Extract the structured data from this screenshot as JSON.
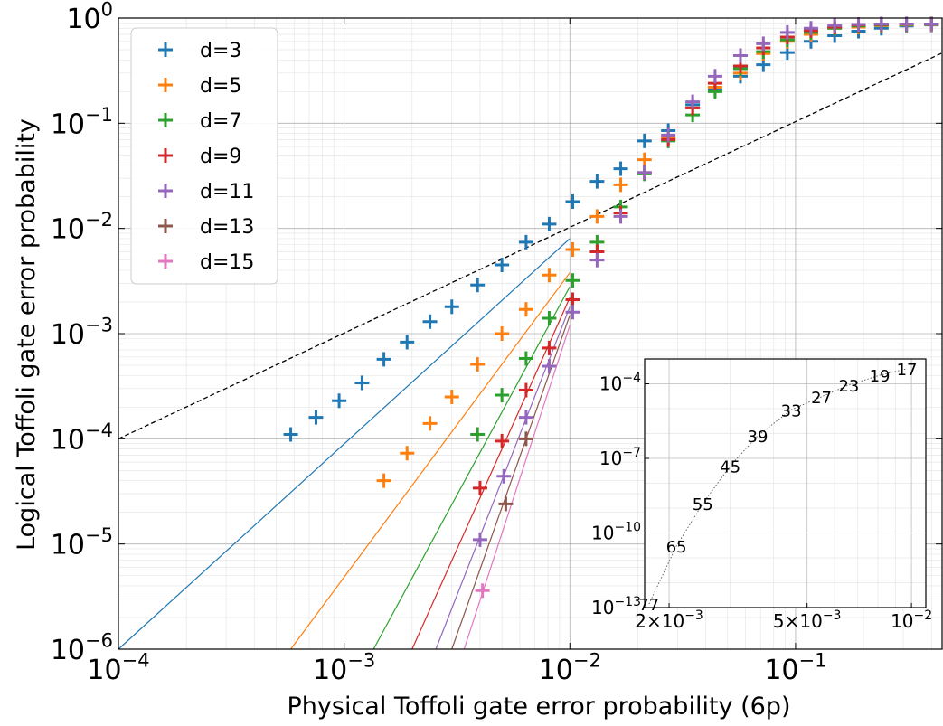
{
  "chart_data": [
    {
      "type": "scatter",
      "title": "",
      "xlabel": "Physical Toffoli gate error probability (6p)",
      "ylabel": "Logical Toffoli gate error probability",
      "xscale": "log",
      "yscale": "log",
      "xlim": [
        0.0001,
        0.45
      ],
      "ylim": [
        1e-06,
        1
      ],
      "x_ticks": [
        {
          "value": 0.0001,
          "base": "10",
          "exp": "−4"
        },
        {
          "value": 0.001,
          "base": "10",
          "exp": "−3"
        },
        {
          "value": 0.01,
          "base": "10",
          "exp": "−2"
        },
        {
          "value": 0.1,
          "base": "10",
          "exp": "−1"
        }
      ],
      "y_ticks": [
        {
          "value": 1e-06,
          "base": "10",
          "exp": "−6"
        },
        {
          "value": 1e-05,
          "base": "10",
          "exp": "−5"
        },
        {
          "value": 0.0001,
          "base": "10",
          "exp": "−4"
        },
        {
          "value": 0.001,
          "base": "10",
          "exp": "−3"
        },
        {
          "value": 0.01,
          "base": "10",
          "exp": "−2"
        },
        {
          "value": 0.1,
          "base": "10",
          "exp": "−1"
        },
        {
          "value": 1,
          "base": "10",
          "exp": "0"
        }
      ],
      "grid": true,
      "legend_position": "top-left",
      "marker": "plus",
      "series": [
        {
          "name": "d=3",
          "color": "#1f77b4",
          "points": [
            [
              0.00058,
              0.00011
            ],
            [
              0.00075,
              0.00016
            ],
            [
              0.00095,
              0.00023
            ],
            [
              0.0012,
              0.00034
            ],
            [
              0.0015,
              0.00057
            ],
            [
              0.0019,
              0.00083
            ],
            [
              0.0024,
              0.0013
            ],
            [
              0.003,
              0.0018
            ],
            [
              0.0039,
              0.0029
            ],
            [
              0.005,
              0.0045
            ],
            [
              0.0064,
              0.0074
            ],
            [
              0.0081,
              0.011
            ],
            [
              0.0103,
              0.018
            ],
            [
              0.0132,
              0.028
            ],
            [
              0.0168,
              0.037
            ],
            [
              0.0214,
              0.068
            ],
            [
              0.0273,
              0.085
            ],
            [
              0.035,
              0.15
            ],
            [
              0.044,
              0.21
            ],
            [
              0.057,
              0.28
            ],
            [
              0.072,
              0.36
            ],
            [
              0.092,
              0.47
            ],
            [
              0.117,
              0.6
            ],
            [
              0.149,
              0.68
            ],
            [
              0.19,
              0.75
            ],
            [
              0.24,
              0.8
            ],
            [
              0.31,
              0.84
            ],
            [
              0.4,
              0.86
            ]
          ]
        },
        {
          "name": "d=5",
          "color": "#ff7f0e",
          "points": [
            [
              0.0015,
              4e-05
            ],
            [
              0.0019,
              7.3e-05
            ],
            [
              0.0024,
              0.00014
            ],
            [
              0.003,
              0.00025
            ],
            [
              0.0039,
              0.00051
            ],
            [
              0.005,
              0.001
            ],
            [
              0.0064,
              0.0017
            ],
            [
              0.0081,
              0.0036
            ],
            [
              0.0103,
              0.0063
            ],
            [
              0.0132,
              0.013
            ],
            [
              0.0168,
              0.026
            ],
            [
              0.0214,
              0.045
            ],
            [
              0.0273,
              0.073
            ],
            [
              0.035,
              0.14
            ],
            [
              0.044,
              0.22
            ],
            [
              0.057,
              0.3
            ],
            [
              0.072,
              0.46
            ],
            [
              0.092,
              0.6
            ],
            [
              0.117,
              0.7
            ],
            [
              0.149,
              0.8
            ],
            [
              0.19,
              0.82
            ],
            [
              0.24,
              0.85
            ],
            [
              0.31,
              0.86
            ],
            [
              0.4,
              0.87
            ]
          ]
        },
        {
          "name": "d=7",
          "color": "#2ca02c",
          "points": [
            [
              0.0039,
              0.00011
            ],
            [
              0.005,
              0.00026
            ],
            [
              0.0064,
              0.00058
            ],
            [
              0.0081,
              0.0014
            ],
            [
              0.0103,
              0.0032
            ],
            [
              0.0132,
              0.0074
            ],
            [
              0.0168,
              0.016
            ],
            [
              0.0214,
              0.033
            ],
            [
              0.0273,
              0.068
            ],
            [
              0.035,
              0.12
            ],
            [
              0.044,
              0.2
            ],
            [
              0.057,
              0.33
            ],
            [
              0.072,
              0.48
            ],
            [
              0.092,
              0.62
            ],
            [
              0.117,
              0.73
            ],
            [
              0.149,
              0.8
            ],
            [
              0.19,
              0.84
            ],
            [
              0.24,
              0.86
            ],
            [
              0.31,
              0.87
            ],
            [
              0.4,
              0.88
            ]
          ]
        },
        {
          "name": "d=9",
          "color": "#d62728",
          "points": [
            [
              0.004,
              3.4e-05
            ],
            [
              0.005,
              9.5e-05
            ],
            [
              0.0064,
              0.00029
            ],
            [
              0.0081,
              0.00073
            ],
            [
              0.0103,
              0.0021
            ],
            [
              0.0132,
              0.006
            ],
            [
              0.0168,
              0.014
            ],
            [
              0.0214,
              0.034
            ],
            [
              0.0273,
              0.07
            ],
            [
              0.035,
              0.14
            ],
            [
              0.044,
              0.24
            ],
            [
              0.057,
              0.35
            ],
            [
              0.072,
              0.52
            ],
            [
              0.092,
              0.66
            ],
            [
              0.117,
              0.76
            ],
            [
              0.149,
              0.82
            ],
            [
              0.19,
              0.86
            ],
            [
              0.24,
              0.87
            ],
            [
              0.31,
              0.88
            ],
            [
              0.4,
              0.88
            ]
          ]
        },
        {
          "name": "d=11",
          "color": "#9467bd",
          "points": [
            [
              0.004,
              1.1e-05
            ],
            [
              0.0051,
              4.4e-05
            ],
            [
              0.0064,
              0.00016
            ],
            [
              0.0081,
              0.00049
            ],
            [
              0.0103,
              0.0016
            ],
            [
              0.0132,
              0.005
            ],
            [
              0.0168,
              0.013
            ],
            [
              0.0214,
              0.034
            ],
            [
              0.0273,
              0.077
            ],
            [
              0.035,
              0.16
            ],
            [
              0.044,
              0.28
            ],
            [
              0.057,
              0.44
            ],
            [
              0.072,
              0.57
            ],
            [
              0.092,
              0.73
            ],
            [
              0.117,
              0.8
            ],
            [
              0.149,
              0.85
            ],
            [
              0.19,
              0.87
            ],
            [
              0.24,
              0.88
            ],
            [
              0.31,
              0.88
            ],
            [
              0.4,
              0.88
            ]
          ]
        },
        {
          "name": "d=13",
          "color": "#8c564b",
          "points": [
            [
              0.0052,
              2.4e-05
            ],
            [
              0.0064,
              0.0001
            ]
          ]
        },
        {
          "name": "d=15",
          "color": "#e377c2",
          "points": [
            [
              0.0041,
              3.6e-06
            ]
          ]
        }
      ],
      "fit_lines": [
        {
          "color": "#1f77b4",
          "from": [
            0.0001,
            1e-06
          ],
          "to": [
            0.01,
            0.008
          ]
        },
        {
          "color": "#ff7f0e",
          "from": [
            0.00058,
            1e-06
          ],
          "to": [
            0.01,
            0.0038
          ]
        },
        {
          "color": "#2ca02c",
          "from": [
            0.00135,
            1e-06
          ],
          "to": [
            0.01,
            0.0028
          ]
        },
        {
          "color": "#d62728",
          "from": [
            0.002,
            1e-06
          ],
          "to": [
            0.01,
            0.0022
          ]
        },
        {
          "color": "#9467bd",
          "from": [
            0.00255,
            1e-06
          ],
          "to": [
            0.01,
            0.0018
          ]
        },
        {
          "color": "#8c564b",
          "from": [
            0.003,
            1e-06
          ],
          "to": [
            0.01,
            0.0015
          ]
        },
        {
          "color": "#e377c2",
          "from": [
            0.0034,
            1e-06
          ],
          "to": [
            0.01,
            0.0012
          ]
        }
      ],
      "reference_line": {
        "style": "dashed",
        "color": "#000000",
        "from": [
          0.0001,
          0.0001
        ],
        "to": [
          0.45,
          0.47
        ]
      }
    },
    {
      "type": "line",
      "title": "",
      "xscale": "log",
      "yscale": "log",
      "xlim": [
        0.0017,
        0.011
      ],
      "ylim": [
        1e-13,
        0.001
      ],
      "x_ticks": [
        {
          "value": 0.002,
          "prefix": "2×",
          "base": "10",
          "exp": "−3"
        },
        {
          "value": 0.005,
          "prefix": "5×",
          "base": "10",
          "exp": "−3"
        },
        {
          "value": 0.01,
          "prefix": "",
          "base": "10",
          "exp": "−2"
        }
      ],
      "y_ticks": [
        {
          "value": 1e-13,
          "base": "10",
          "exp": "−13"
        },
        {
          "value": 1e-10,
          "base": "10",
          "exp": "−10"
        },
        {
          "value": 1e-07,
          "base": "10",
          "exp": "−7"
        },
        {
          "value": 0.0001,
          "base": "10",
          "exp": "−4"
        }
      ],
      "grid": true,
      "points": [
        {
          "label": "77",
          "x": 0.00175,
          "y": 1.4e-13
        },
        {
          "label": "65",
          "x": 0.0021,
          "y": 3e-11
        },
        {
          "label": "55",
          "x": 0.0025,
          "y": 1.5e-09
        },
        {
          "label": "45",
          "x": 0.003,
          "y": 5e-08
        },
        {
          "label": "39",
          "x": 0.0036,
          "y": 8e-07
        },
        {
          "label": "33",
          "x": 0.0045,
          "y": 9e-06
        },
        {
          "label": "27",
          "x": 0.0055,
          "y": 3e-05
        },
        {
          "label": "23",
          "x": 0.0066,
          "y": 9e-05
        },
        {
          "label": "19",
          "x": 0.0081,
          "y": 0.00022
        },
        {
          "label": "17",
          "x": 0.0097,
          "y": 0.0004
        }
      ]
    }
  ]
}
